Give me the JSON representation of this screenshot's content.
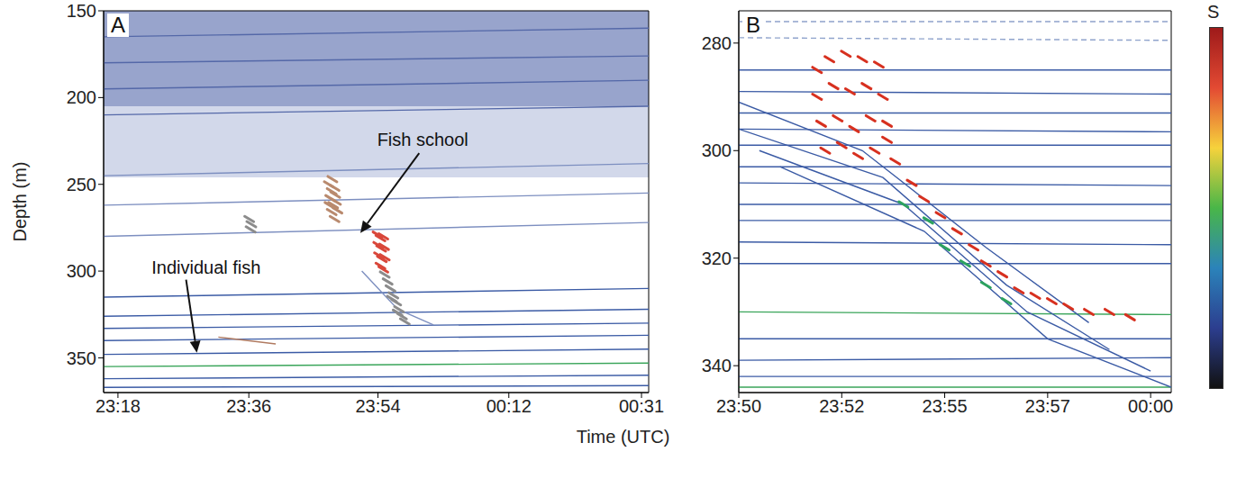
{
  "chart_data": [
    {
      "type": "scatter",
      "panel_label": "A",
      "ylabel": "Depth (m)",
      "xlabel": "Time (UTC)",
      "xlim": [
        1396,
        1472
      ],
      "ylim": [
        150,
        370
      ],
      "xticks": [
        {
          "value": 1398,
          "label": "23:18"
        },
        {
          "value": 1416.25,
          "label": "23:36"
        },
        {
          "value": 1434.25,
          "label": "23:54"
        },
        {
          "value": 1452.5,
          "label": "00:12"
        },
        {
          "value": 1471,
          "label": "00:31"
        }
      ],
      "yticks": [
        150,
        200,
        250,
        300,
        350
      ],
      "layers": [
        {
          "depth": [
            150,
            205
          ],
          "color": "#7686bb"
        },
        {
          "depth": [
            205,
            246
          ],
          "color": "#c3cbe3"
        }
      ],
      "series": [
        {
          "type": "line",
          "color": "#5468a8",
          "x": [
            1396,
            1472
          ],
          "values": [
            165,
            160
          ]
        },
        {
          "type": "line",
          "color": "#5468a8",
          "x": [
            1396,
            1472
          ],
          "values": [
            180,
            176
          ]
        },
        {
          "type": "line",
          "color": "#5468a8",
          "x": [
            1396,
            1472
          ],
          "values": [
            195,
            190
          ]
        },
        {
          "type": "line",
          "color": "#5468a8",
          "x": [
            1396,
            1472
          ],
          "values": [
            210,
            205
          ]
        },
        {
          "type": "line",
          "color": "#7d8fc0",
          "x": [
            1396,
            1472
          ],
          "values": [
            245,
            238
          ]
        },
        {
          "type": "line",
          "color": "#7d8fc0",
          "x": [
            1396,
            1472
          ],
          "values": [
            262,
            255
          ]
        },
        {
          "type": "line",
          "color": "#7d8fc0",
          "x": [
            1396,
            1472
          ],
          "values": [
            280,
            272
          ]
        },
        {
          "type": "line",
          "color": "#3b5ba5",
          "x": [
            1396,
            1472
          ],
          "values": [
            315,
            310
          ]
        },
        {
          "type": "line",
          "color": "#3b5ba5",
          "x": [
            1396,
            1472
          ],
          "values": [
            326,
            322
          ]
        },
        {
          "type": "line",
          "color": "#3b5ba5",
          "x": [
            1396,
            1472
          ],
          "values": [
            333,
            330
          ]
        },
        {
          "type": "line",
          "color": "#3b5ba5",
          "x": [
            1396,
            1472
          ],
          "values": [
            340,
            337
          ]
        },
        {
          "type": "line",
          "color": "#3b5ba5",
          "x": [
            1396,
            1472
          ],
          "values": [
            348,
            345
          ]
        },
        {
          "type": "line",
          "color": "#3aa55a",
          "x": [
            1396,
            1472
          ],
          "values": [
            355,
            353
          ]
        },
        {
          "type": "line",
          "color": "#3b5ba5",
          "x": [
            1396,
            1472
          ],
          "values": [
            362,
            360
          ]
        },
        {
          "type": "line",
          "color": "#3b5ba5",
          "x": [
            1396,
            1472
          ],
          "values": [
            367,
            366
          ]
        },
        {
          "type": "line",
          "color": "#7d8fc0",
          "x": [
            1432,
            1437,
            1442
          ],
          "values": [
            300,
            322,
            331
          ]
        },
        {
          "type": "line",
          "color": "#b07a60",
          "x": [
            1412,
            1420
          ],
          "values": [
            338,
            342
          ]
        },
        {
          "type": "scatter",
          "marker": "streak",
          "color": "#b98a6e",
          "x": [
            1427.4,
            1427.8,
            1428.2,
            1427.6,
            1428.0,
            1428.4,
            1427.8,
            1428.2,
            1428.6,
            1427.5,
            1427.9,
            1428.3
          ],
          "values": [
            250,
            254,
            252,
            258,
            262,
            260,
            266,
            270,
            265,
            262,
            247,
            256
          ]
        },
        {
          "type": "scatter",
          "marker": "streak",
          "color": "#d9473a",
          "x": [
            1434.2,
            1434.6,
            1435.0,
            1434.3,
            1434.7,
            1435.1,
            1434.4,
            1434.8,
            1435.2,
            1434.6,
            1435.0
          ],
          "values": [
            279,
            281,
            280,
            285,
            287,
            286,
            291,
            293,
            292,
            297,
            299
          ]
        },
        {
          "type": "scatter",
          "marker": "streak",
          "color": "#8c8c8c",
          "x": [
            1435.2,
            1435.6,
            1436.0,
            1436.4,
            1436.8,
            1437.2,
            1437.6,
            1438.0,
            1436.2,
            1437.0
          ],
          "values": [
            302,
            306,
            310,
            314,
            318,
            322,
            326,
            329,
            316,
            324
          ]
        },
        {
          "type": "scatter",
          "marker": "streak",
          "color": "#8c8c8c",
          "x": [
            1416.3,
            1416.6,
            1416.5
          ],
          "values": [
            270,
            273,
            276
          ]
        }
      ],
      "annotations": [
        {
          "text": "Fish school",
          "x": 1440.5,
          "y": 224,
          "arrow": {
            "from": [
              1440,
              232
            ],
            "to": [
              1431.8,
              278
            ]
          }
        },
        {
          "text": "Individual fish",
          "x": 1410.3,
          "y": 298,
          "arrow": {
            "from": [
              1407.5,
              305
            ],
            "to": [
              1409,
              347
            ]
          }
        }
      ]
    },
    {
      "type": "scatter",
      "panel_label": "B",
      "xlim": [
        1430,
        1440.5
      ],
      "ylim": [
        274,
        345
      ],
      "xticks": [
        {
          "value": 1430,
          "label": "23:50"
        },
        {
          "value": 1432.5,
          "label": "23:52"
        },
        {
          "value": 1435,
          "label": "23:55"
        },
        {
          "value": 1437.5,
          "label": "23:57"
        },
        {
          "value": 1440,
          "label": "00:00"
        }
      ],
      "yticks": [
        280,
        300,
        320,
        340
      ],
      "colorbar": {
        "label": "S",
        "colors": [
          "#9e1a1a",
          "#e34a33",
          "#f6d23c",
          "#49b648",
          "#2b83ba",
          "#2c3e8f",
          "#111111"
        ]
      },
      "series": [
        {
          "type": "line",
          "line_style": "dashed",
          "color": "#8fa3cc",
          "x": [
            1430,
            1440.5
          ],
          "values": [
            276,
            276
          ]
        },
        {
          "type": "line",
          "line_style": "dashed",
          "color": "#8fa3cc",
          "x": [
            1430,
            1440.5
          ],
          "values": [
            279,
            279.5
          ]
        },
        {
          "type": "line",
          "color": "#3b5ba5",
          "x": [
            1430,
            1440.5
          ],
          "values": [
            285,
            285
          ]
        },
        {
          "type": "line",
          "color": "#3b5ba5",
          "x": [
            1430,
            1440.5
          ],
          "values": [
            289,
            289.5
          ]
        },
        {
          "type": "line",
          "color": "#3b5ba5",
          "x": [
            1430,
            1440.5
          ],
          "values": [
            293,
            293
          ]
        },
        {
          "type": "line",
          "color": "#3b5ba5",
          "x": [
            1430,
            1440.5
          ],
          "values": [
            296,
            296.5
          ]
        },
        {
          "type": "line",
          "color": "#3b5ba5",
          "x": [
            1430,
            1440.5
          ],
          "values": [
            299,
            299
          ]
        },
        {
          "type": "line",
          "color": "#3b5ba5",
          "x": [
            1430,
            1440.5
          ],
          "values": [
            303,
            303
          ]
        },
        {
          "type": "line",
          "color": "#3b5ba5",
          "x": [
            1430,
            1440.5
          ],
          "values": [
            306,
            306.5
          ]
        },
        {
          "type": "line",
          "color": "#3b5ba5",
          "x": [
            1430,
            1440.5
          ],
          "values": [
            310,
            310
          ]
        },
        {
          "type": "line",
          "color": "#3b5ba5",
          "x": [
            1430,
            1440.5
          ],
          "values": [
            313,
            313
          ]
        },
        {
          "type": "line",
          "color": "#3b5ba5",
          "x": [
            1430,
            1440.5
          ],
          "values": [
            317,
            317.5
          ]
        },
        {
          "type": "line",
          "color": "#3b5ba5",
          "x": [
            1430,
            1440.5
          ],
          "values": [
            321,
            321
          ]
        },
        {
          "type": "line",
          "color": "#3aa55a",
          "x": [
            1430,
            1440.5
          ],
          "values": [
            330,
            330.5
          ]
        },
        {
          "type": "line",
          "color": "#3b5ba5",
          "x": [
            1430,
            1440.5
          ],
          "values": [
            335,
            335
          ]
        },
        {
          "type": "line",
          "color": "#3b5ba5",
          "x": [
            1430,
            1440.5
          ],
          "values": [
            339,
            338.5
          ]
        },
        {
          "type": "line",
          "color": "#3b5ba5",
          "x": [
            1430,
            1440.5
          ],
          "values": [
            342,
            342
          ]
        },
        {
          "type": "line",
          "color": "#3aa55a",
          "x": [
            1430,
            1440.5
          ],
          "values": [
            344,
            344
          ]
        },
        {
          "type": "line",
          "color": "#3b5ba5",
          "x": [
            1430,
            1433,
            1436,
            1438.5
          ],
          "values": [
            291,
            300,
            318,
            332
          ]
        },
        {
          "type": "line",
          "color": "#3b5ba5",
          "x": [
            1430,
            1433.5,
            1436.5,
            1439
          ],
          "values": [
            296,
            305,
            325,
            337
          ]
        },
        {
          "type": "line",
          "color": "#3b5ba5",
          "x": [
            1430.5,
            1434,
            1437,
            1440
          ],
          "values": [
            300,
            310,
            330,
            341
          ]
        },
        {
          "type": "line",
          "color": "#3b5ba5",
          "x": [
            1431,
            1434.5,
            1437.5,
            1440.5
          ],
          "values": [
            303,
            315,
            335,
            344
          ]
        },
        {
          "type": "scatter",
          "marker": "streak",
          "color": "#d7301f",
          "x": [
            1431.9,
            1432.2,
            1432.6,
            1433.0,
            1433.4,
            1431.9,
            1432.3,
            1432.7,
            1433.1,
            1433.5,
            1432.0,
            1432.4,
            1432.8,
            1433.2,
            1433.6,
            1432.1,
            1432.5,
            1432.9,
            1433.3,
            1433.6
          ],
          "values": [
            285,
            283,
            282,
            283,
            284,
            290,
            288,
            289,
            288,
            290,
            295,
            294,
            296,
            294,
            295,
            300,
            299,
            301,
            300,
            298
          ]
        },
        {
          "type": "scatter",
          "marker": "streak",
          "color": "#d7301f",
          "x": [
            1433.8,
            1434.2,
            1434.5,
            1434.9,
            1435.3,
            1435.7,
            1436.0,
            1436.4,
            1436.8,
            1437.2,
            1437.6,
            1438.0,
            1438.5,
            1439.0,
            1439.5
          ],
          "values": [
            302,
            306,
            309,
            312,
            315,
            318,
            321,
            323,
            326,
            327,
            328,
            329,
            330,
            330,
            331
          ]
        },
        {
          "type": "scatter",
          "marker": "streak",
          "color": "#2ca25f",
          "x": [
            1434.0,
            1434.6,
            1435.0,
            1435.5,
            1436.0,
            1436.5
          ],
          "values": [
            310,
            313,
            318,
            321,
            325,
            328
          ]
        }
      ]
    }
  ]
}
